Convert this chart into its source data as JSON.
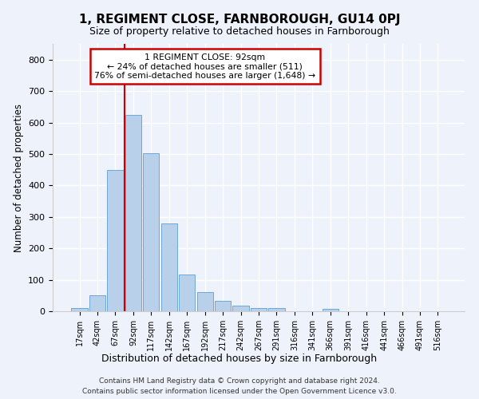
{
  "title": "1, REGIMENT CLOSE, FARNBOROUGH, GU14 0PJ",
  "subtitle": "Size of property relative to detached houses in Farnborough",
  "xlabel": "Distribution of detached houses by size in Farnborough",
  "ylabel": "Number of detached properties",
  "bar_color": "#b8d0ea",
  "bar_edge_color": "#6fa8d4",
  "categories": [
    "17sqm",
    "42sqm",
    "67sqm",
    "92sqm",
    "117sqm",
    "142sqm",
    "167sqm",
    "192sqm",
    "217sqm",
    "242sqm",
    "267sqm",
    "291sqm",
    "316sqm",
    "341sqm",
    "366sqm",
    "391sqm",
    "416sqm",
    "441sqm",
    "466sqm",
    "491sqm",
    "516sqm"
  ],
  "values": [
    10,
    52,
    448,
    625,
    503,
    280,
    117,
    62,
    32,
    18,
    9,
    9,
    0,
    0,
    8,
    0,
    0,
    0,
    0,
    0,
    0
  ],
  "vline_x_index": 3,
  "vline_color": "#cc0000",
  "ylim": [
    0,
    850
  ],
  "yticks": [
    0,
    100,
    200,
    300,
    400,
    500,
    600,
    700,
    800
  ],
  "annotation_line1": "1 REGIMENT CLOSE: 92sqm",
  "annotation_line2": "← 24% of detached houses are smaller (511)",
  "annotation_line3": "76% of semi-detached houses are larger (1,648) →",
  "footer1": "Contains HM Land Registry data © Crown copyright and database right 2024.",
  "footer2": "Contains public sector information licensed under the Open Government Licence v3.0.",
  "bg_color": "#eef2fa",
  "grid_color": "#ffffff"
}
